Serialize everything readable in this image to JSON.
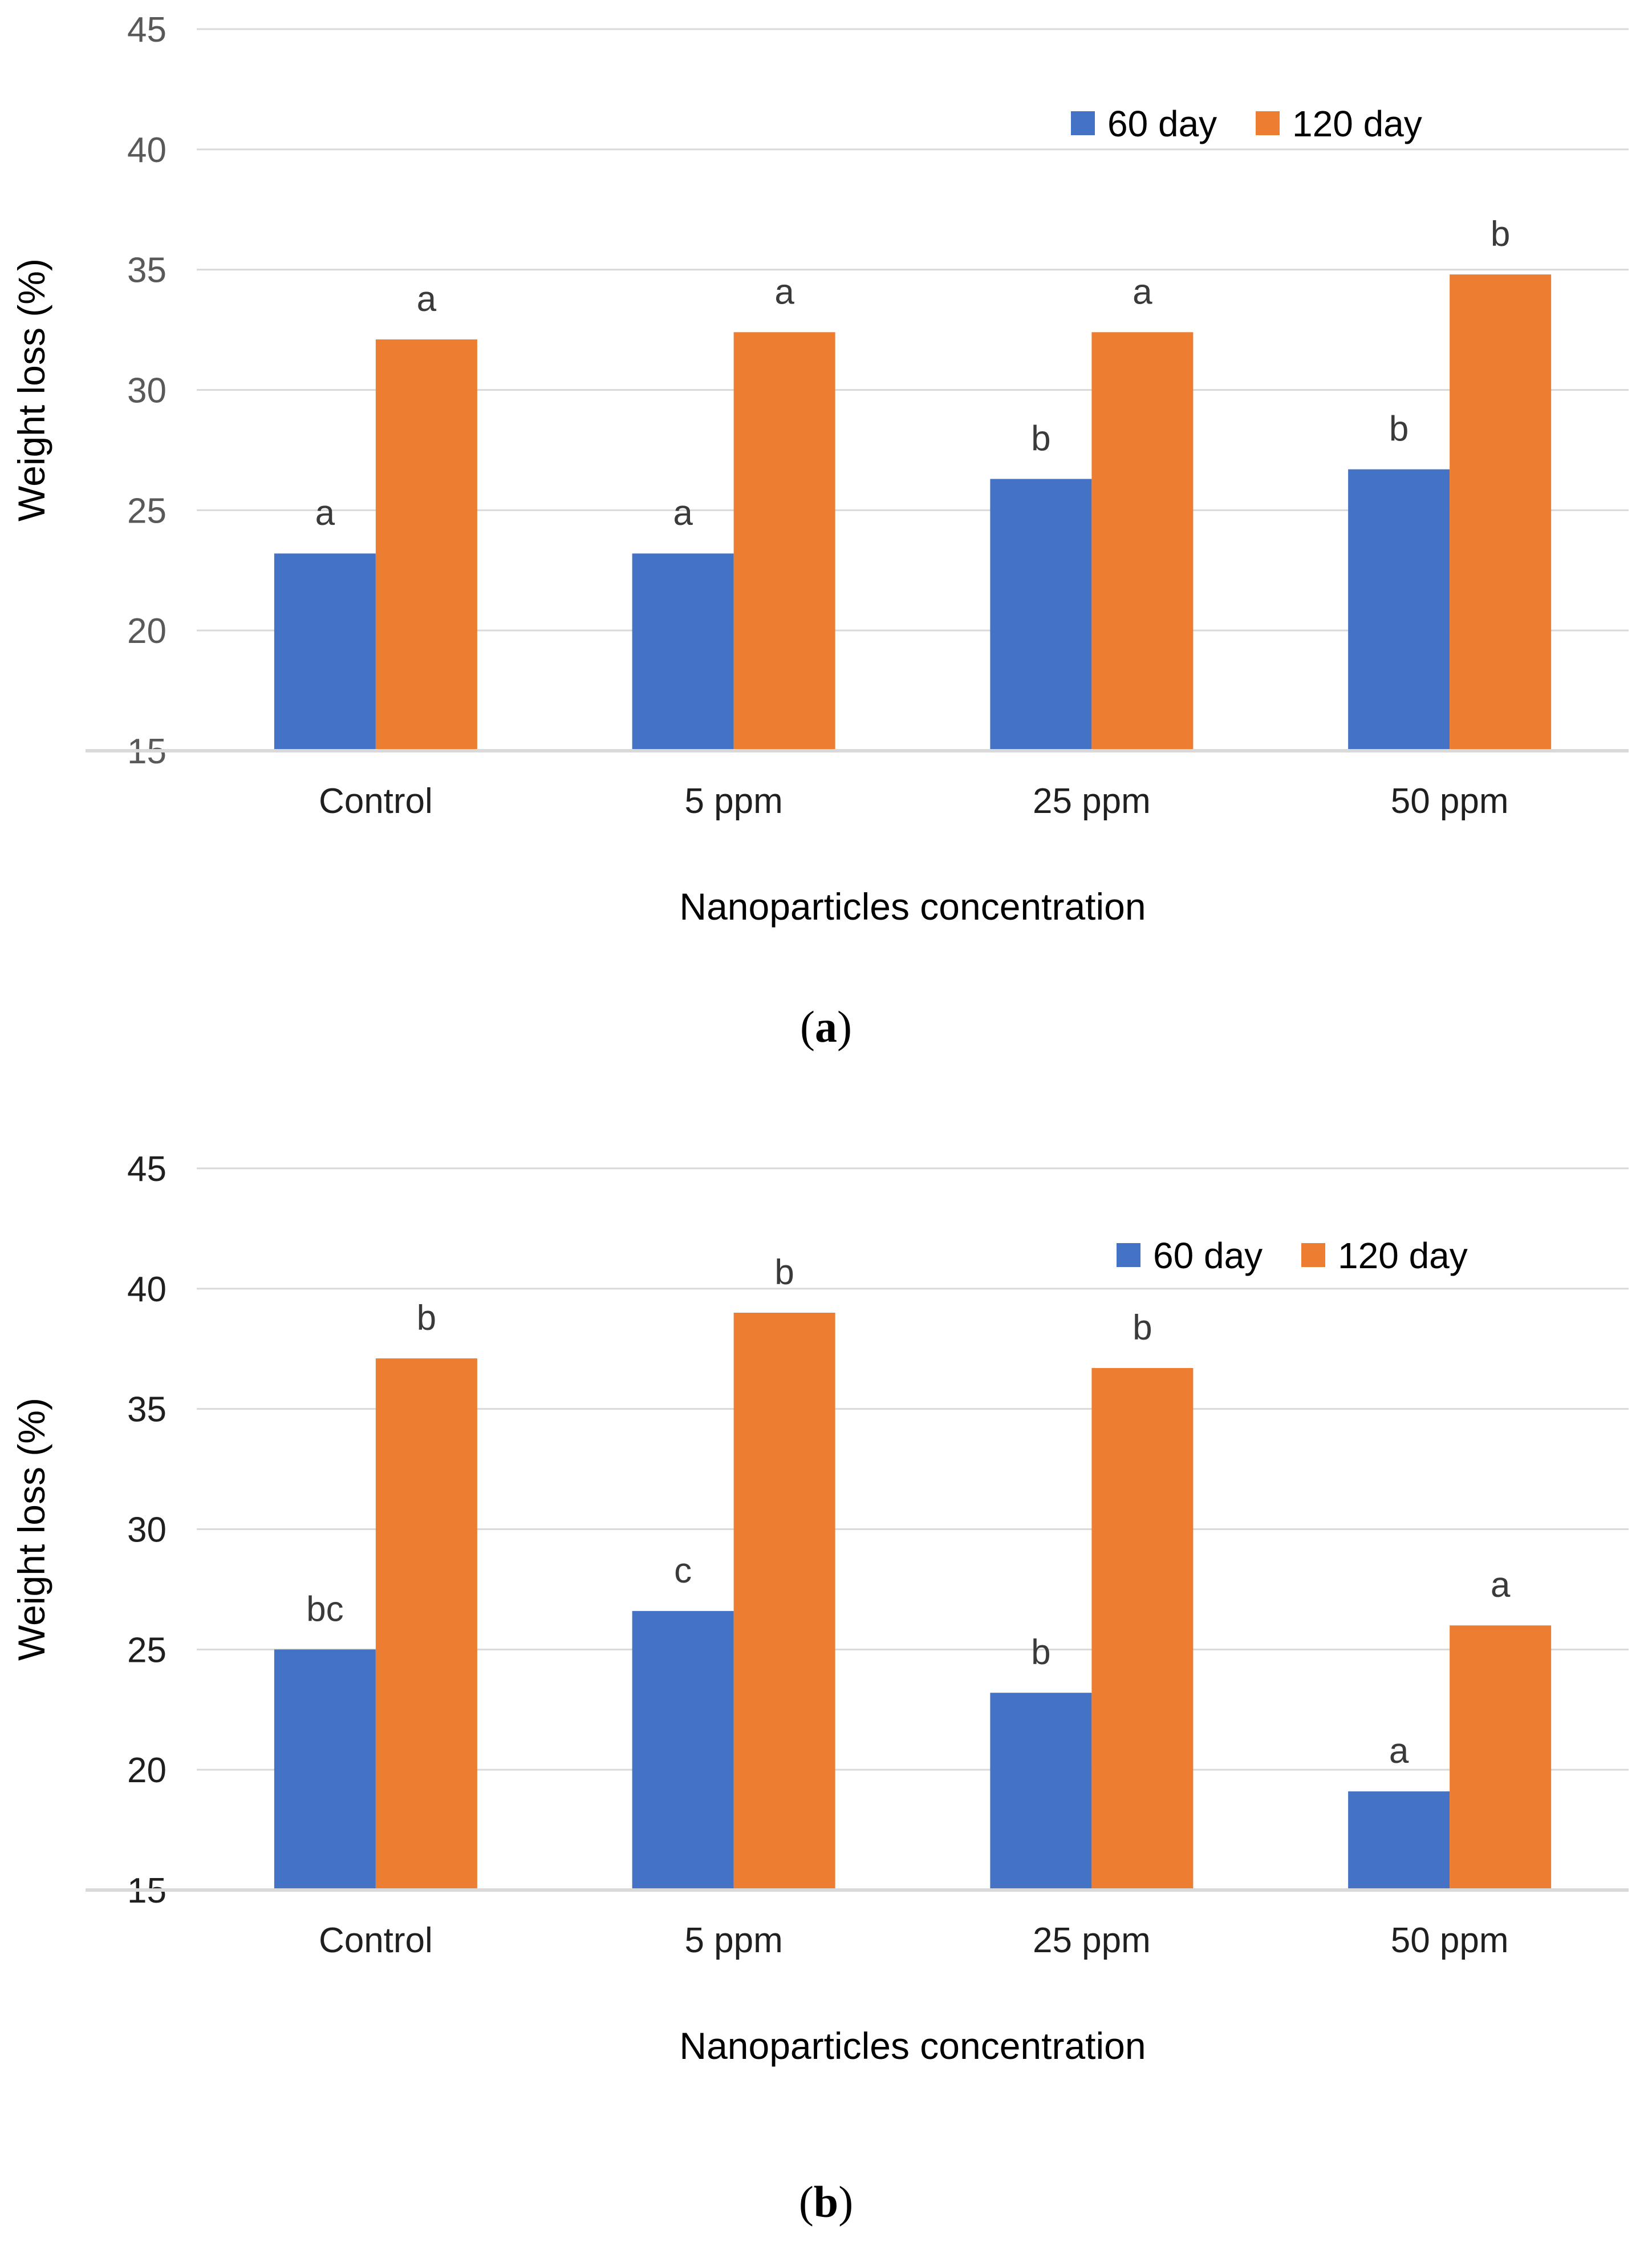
{
  "page": {
    "description": "Two-panel grouped bar chart figure: weight loss (%) vs nanoparticles concentration at 60 and 120 days storage"
  },
  "legend": {
    "series_1_label": "60 day",
    "series_2_label": "120 day"
  },
  "colors": {
    "series_60_day": "#4472C4",
    "series_120_day": "#ED7D31",
    "gridline": "#D9D9D9"
  },
  "chart_data": [
    {
      "type": "bar",
      "title": "",
      "panel": "a",
      "caption": {
        "open": "(",
        "letter": "a",
        "close": ")"
      },
      "categories": [
        "Control",
        "5 ppm",
        "25 ppm",
        "50 ppm"
      ],
      "series": [
        {
          "name": "60 day",
          "color": "#4472C4",
          "values": [
            23.2,
            23.2,
            26.3,
            26.7
          ],
          "letters": [
            "a",
            "a",
            "b",
            "b"
          ]
        },
        {
          "name": "120 day",
          "color": "#ED7D31",
          "values": [
            32.1,
            32.4,
            32.4,
            34.8
          ],
          "letters": [
            "a",
            "a",
            "a",
            "b"
          ]
        }
      ],
      "xlabel": "Nanoparticles concentration",
      "ylabel": "Weight loss (%)",
      "ylim": [
        15,
        45
      ],
      "yticks": [
        15,
        20,
        25,
        30,
        35,
        40,
        45
      ],
      "grid": true,
      "legend_position": "top-right"
    },
    {
      "type": "bar",
      "title": "",
      "panel": "b",
      "caption": {
        "open": "(",
        "letter": "b",
        "close": ")"
      },
      "categories": [
        "Control",
        "5 ppm",
        "25 ppm",
        "50 ppm"
      ],
      "series": [
        {
          "name": "60 day",
          "color": "#4472C4",
          "values": [
            25.0,
            26.6,
            23.2,
            19.1
          ],
          "letters": [
            "bc",
            "c",
            "b",
            "a"
          ]
        },
        {
          "name": "120 day",
          "color": "#ED7D31",
          "values": [
            37.1,
            39.0,
            36.7,
            26.0
          ],
          "letters": [
            "b",
            "b",
            "b",
            "a"
          ]
        }
      ],
      "xlabel": "Nanoparticles concentration",
      "ylabel": "Weight loss (%)",
      "ylim": [
        15,
        45
      ],
      "yticks": [
        15,
        20,
        25,
        30,
        35,
        40,
        45
      ],
      "grid": true,
      "legend_position": "top-right"
    }
  ]
}
